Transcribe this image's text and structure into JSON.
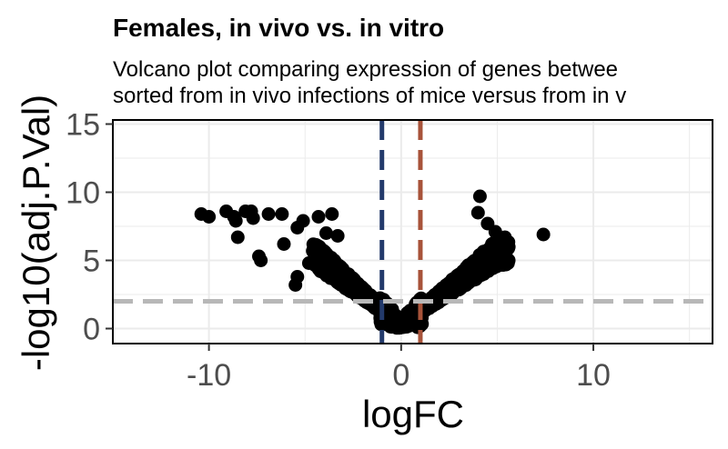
{
  "chart_data": {
    "type": "scatter",
    "title": "Females, in vivo vs. in vitro",
    "subtitle_lines": [
      "Volcano plot comparing expression of genes betwee",
      "sorted from in vivo infections of mice versus from in v"
    ],
    "xlabel": "logFC",
    "ylabel": "-log10(adj.P.Val)",
    "xlim": [
      -15,
      16.2
    ],
    "ylim": [
      -1.1,
      15.3
    ],
    "x_ticks": [
      -10,
      0,
      10
    ],
    "x_tick_labels": [
      "-10",
      "0",
      "10"
    ],
    "y_ticks": [
      0,
      5,
      10,
      15
    ],
    "y_tick_labels": [
      "0",
      "5",
      "10",
      "15"
    ],
    "grid": true,
    "reference_lines": [
      {
        "axis": "x",
        "value": -1,
        "color": "#233a6b",
        "style": "dashed"
      },
      {
        "axis": "x",
        "value": 1,
        "color": "#a8533a",
        "style": "dashed"
      },
      {
        "axis": "y",
        "value": 2,
        "color": "#b8b8b8",
        "style": "dashed"
      }
    ],
    "point_color": "#000000",
    "outlier_points": [
      {
        "x": -10.4,
        "y": 8.4
      },
      {
        "x": -10,
        "y": 8.2
      },
      {
        "x": -9.1,
        "y": 8.6
      },
      {
        "x": -8.7,
        "y": 8.2
      },
      {
        "x": -8.6,
        "y": 7.9
      },
      {
        "x": -8.5,
        "y": 6.7
      },
      {
        "x": -8.1,
        "y": 8.6
      },
      {
        "x": -7.8,
        "y": 8.6
      },
      {
        "x": -7.7,
        "y": 8.1
      },
      {
        "x": -7.4,
        "y": 5.3
      },
      {
        "x": -7.3,
        "y": 5.0
      },
      {
        "x": -6.9,
        "y": 8.4
      },
      {
        "x": -6.2,
        "y": 8.4
      },
      {
        "x": -6.1,
        "y": 6.2
      },
      {
        "x": -5.4,
        "y": 7.4
      },
      {
        "x": -5.1,
        "y": 7.9
      },
      {
        "x": -5.4,
        "y": 3.8
      },
      {
        "x": -5.5,
        "y": 3.2
      },
      {
        "x": -4.6,
        "y": 5.7
      },
      {
        "x": -4.3,
        "y": 8.2
      },
      {
        "x": -3.6,
        "y": 8.4
      },
      {
        "x": -3.3,
        "y": 6.8
      },
      {
        "x": -3.9,
        "y": 7.0
      },
      {
        "x": 4.1,
        "y": 9.7
      },
      {
        "x": 4.0,
        "y": 8.5
      },
      {
        "x": 4.5,
        "y": 7.7
      },
      {
        "x": 4.9,
        "y": 7.1
      },
      {
        "x": 5.4,
        "y": 6.7
      },
      {
        "x": 5.6,
        "y": 6.0
      },
      {
        "x": 5.3,
        "y": 5.4
      },
      {
        "x": 4.8,
        "y": 4.9
      },
      {
        "x": 4.6,
        "y": 4.4
      },
      {
        "x": 7.4,
        "y": 6.9
      },
      {
        "x": 4.3,
        "y": 4.0
      },
      {
        "x": 5.0,
        "y": 6.2
      },
      {
        "x": 3.6,
        "y": 4.5
      },
      {
        "x": -4.8,
        "y": 4.8
      },
      {
        "x": -4.2,
        "y": 4.2
      }
    ],
    "bulk_shape": {
      "description": "dense V-shaped cloud of points centered near logFC 0",
      "x_range": [
        -5,
        6
      ],
      "y_range": [
        0,
        6.5
      ]
    }
  }
}
